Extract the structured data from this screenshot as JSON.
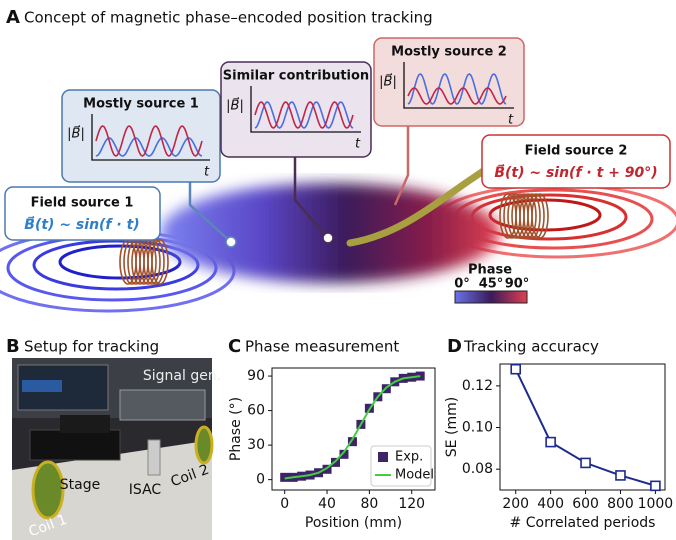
{
  "panel_a": {
    "letter": "A",
    "title": "Concept of magnetic phase–encoded position tracking",
    "insets": [
      {
        "title": "Mostly source 1",
        "ylabel": "|B⃗|",
        "xlabel": "t"
      },
      {
        "title": "Similar contribution",
        "ylabel": "|B⃗|",
        "xlabel": "t"
      },
      {
        "title": "Mostly source 2",
        "ylabel": "|B⃗|",
        "xlabel": "t"
      }
    ],
    "sources": [
      {
        "title": "Field source 1",
        "equation": "B⃗(t) ~ sin(f · t)"
      },
      {
        "title": "Field source 2",
        "equation": "B⃗(t) ~ sin(f · t + 90°)"
      }
    ],
    "colorbar": {
      "title": "Phase",
      "labels": [
        "0°",
        "45°",
        "90°"
      ]
    }
  },
  "panel_b": {
    "letter": "B",
    "title": "Setup for tracking",
    "labels": [
      "Signal gen.",
      "Stage",
      "ISAC",
      "Coil 2",
      "Coil 1"
    ]
  },
  "chart_data": [
    {
      "type": "scatter",
      "panel": "C",
      "title": "Phase measurement",
      "x_label": "Position (mm)",
      "y_label": "Phase (°)",
      "x": [
        0,
        8,
        16,
        24,
        32,
        40,
        48,
        56,
        64,
        72,
        80,
        88,
        96,
        104,
        112,
        120,
        128
      ],
      "series": [
        {
          "name": "Exp.",
          "color": "#3d2466",
          "type": "scatter",
          "values": [
            2,
            2,
            3,
            4,
            6,
            9,
            15,
            22,
            33,
            48,
            62,
            72,
            79,
            85,
            88,
            89,
            90
          ]
        },
        {
          "name": "Model",
          "color": "#44cc44",
          "type": "line",
          "values": [
            1,
            2,
            3,
            4,
            6,
            10,
            16,
            24,
            35,
            48,
            61,
            72,
            80,
            85,
            88,
            89,
            90
          ]
        }
      ],
      "xlim": [
        -12,
        142
      ],
      "ylim": [
        -9,
        97
      ],
      "xticks": [
        0,
        40,
        80,
        120
      ],
      "yticks": [
        0,
        30,
        60,
        90
      ],
      "legend": "lower right"
    },
    {
      "type": "line",
      "panel": "D",
      "title": "Tracking accuracy",
      "x_label": "# Correlated periods",
      "y_label": "SE (mm)",
      "x": [
        200,
        400,
        600,
        800,
        1000
      ],
      "values": [
        0.128,
        0.093,
        0.083,
        0.077,
        0.072
      ],
      "color": "#1c2b8c",
      "marker": "open-square",
      "xlim": [
        110,
        1055
      ],
      "ylim": [
        0.07,
        0.1305
      ],
      "xticks": [
        200,
        400,
        600,
        800,
        1000
      ],
      "yticks": [
        {
          "value": 0.08,
          "label": "0.08"
        },
        {
          "value": 0.1,
          "label": "0.10"
        },
        {
          "value": 0.12,
          "label": "0.12"
        }
      ]
    }
  ]
}
